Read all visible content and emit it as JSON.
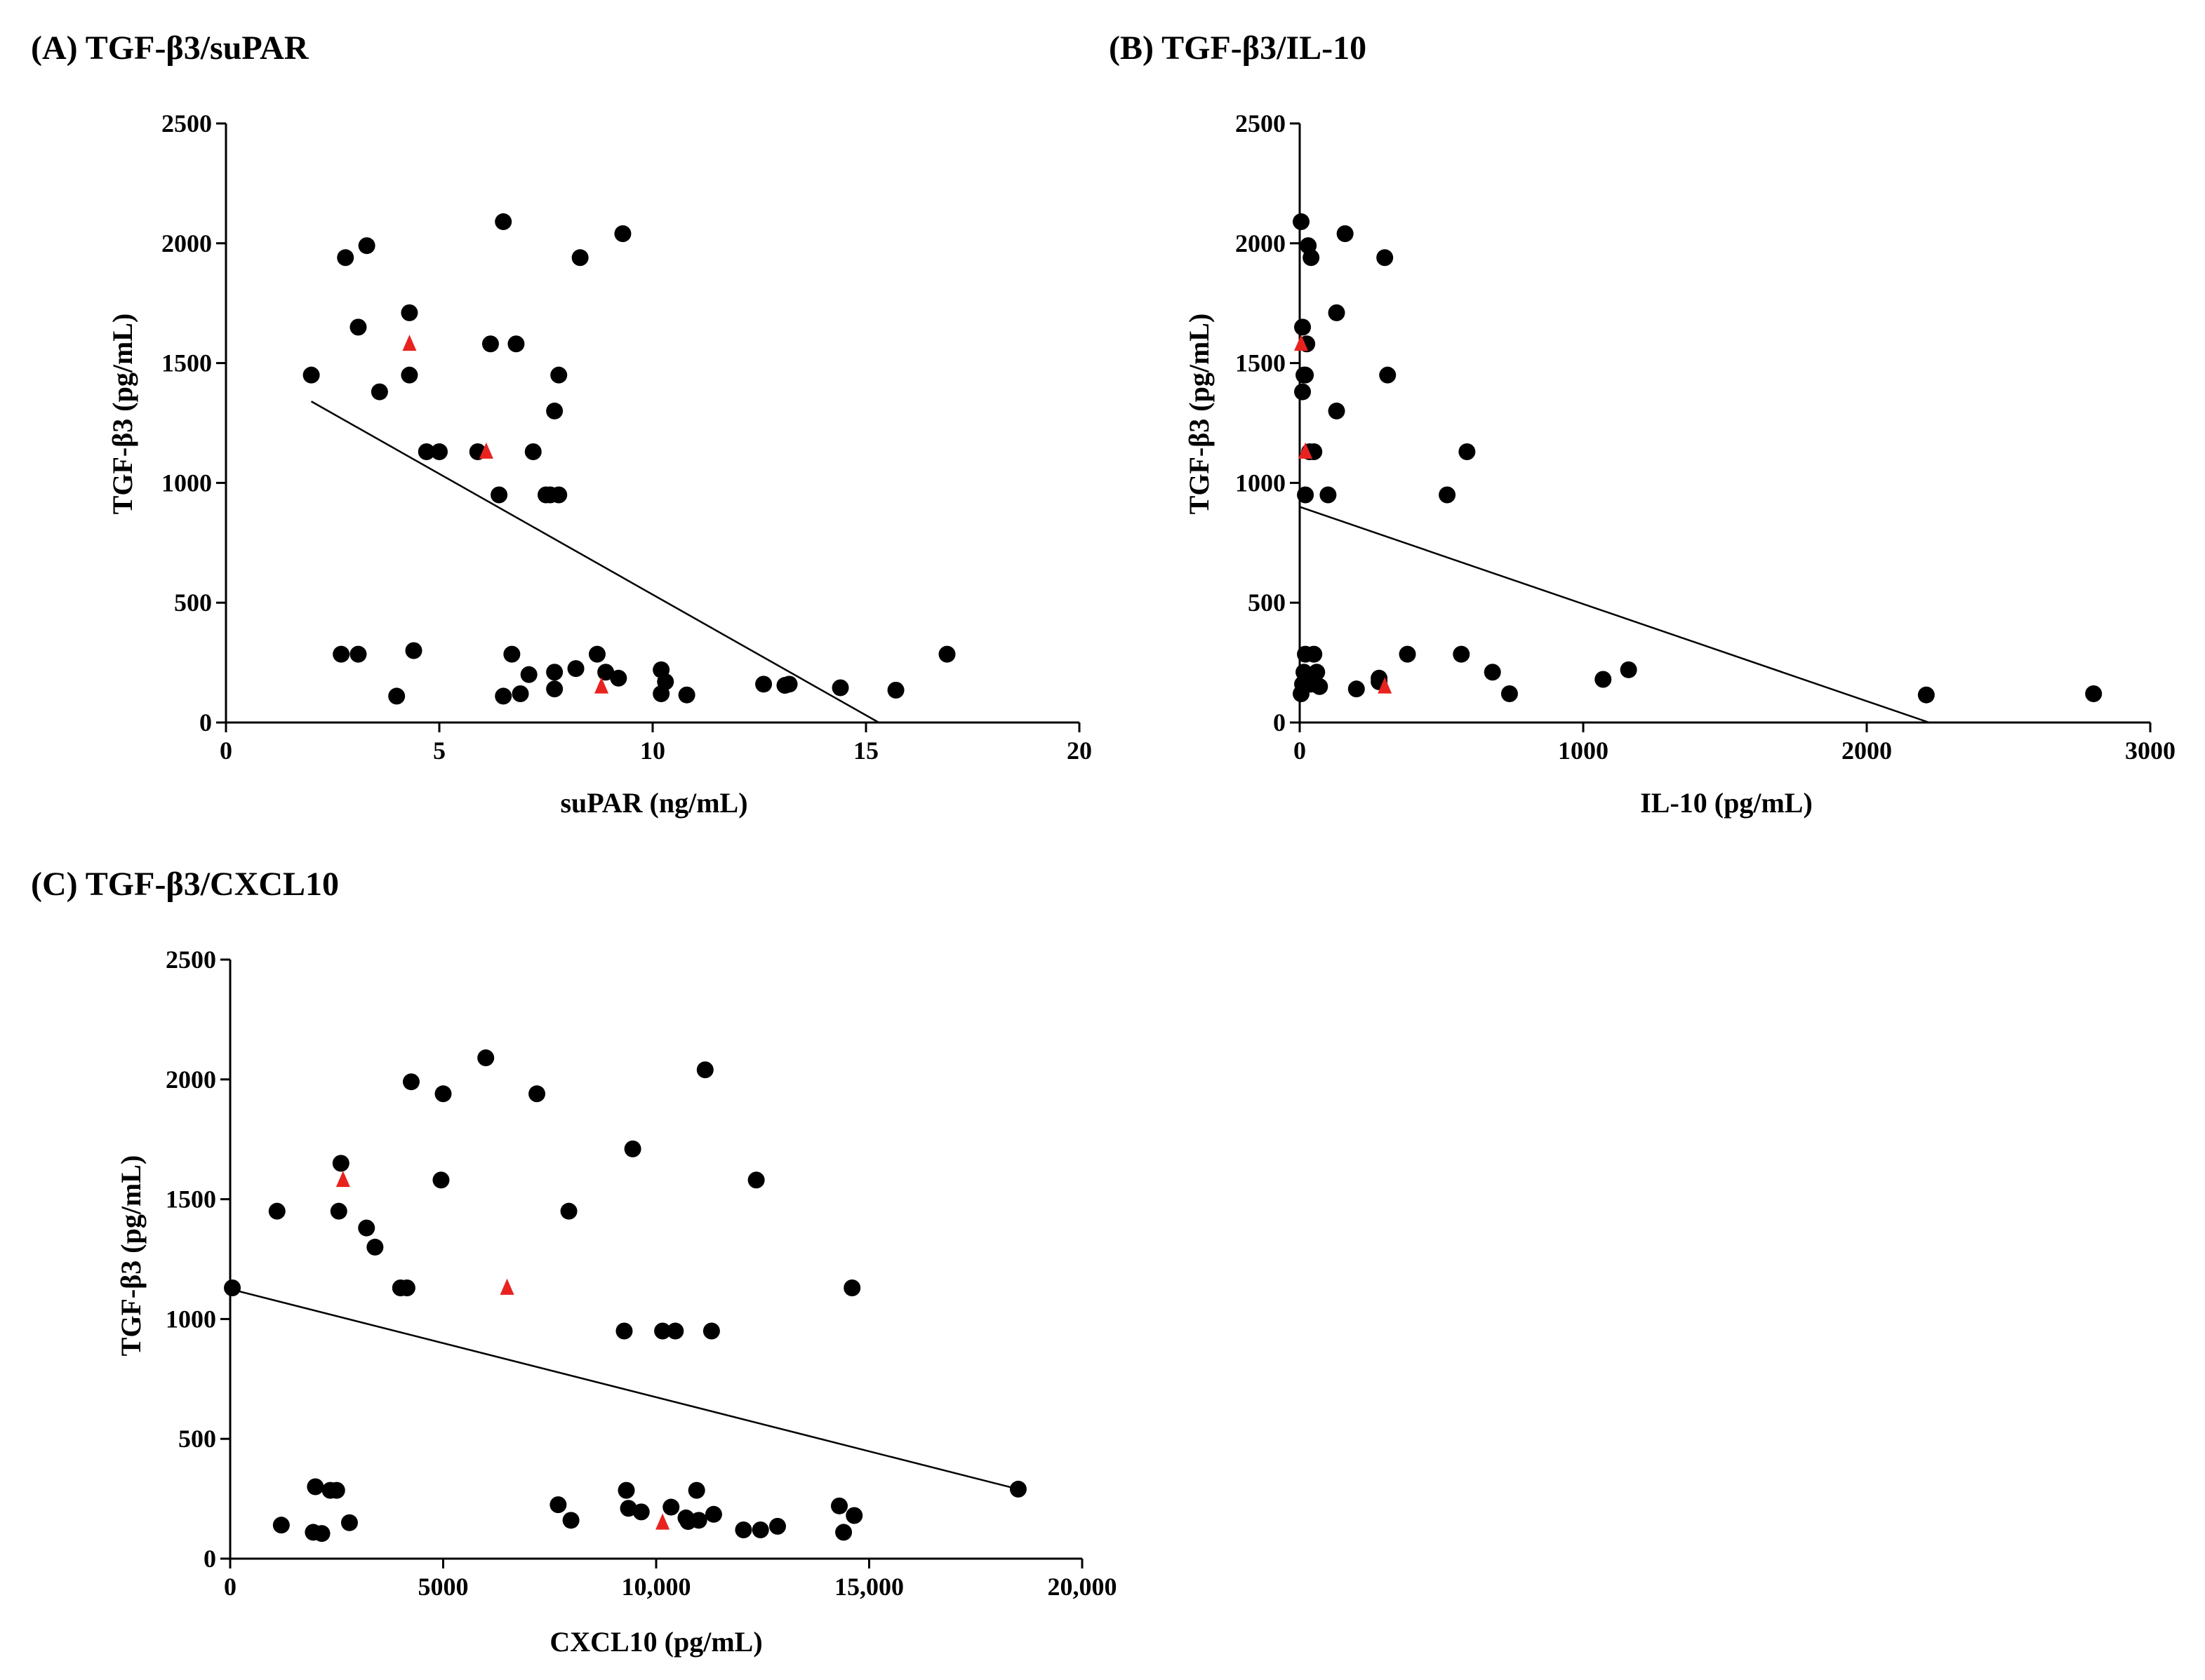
{
  "chart_data": [
    {
      "id": "A",
      "type": "scatter",
      "title": "(A) TGF-β3/suPAR",
      "xlabel": "suPAR (ng/mL)",
      "ylabel": "TGF-β3 (pg/mL)",
      "xlim": [
        0,
        20
      ],
      "ylim": [
        0,
        2500
      ],
      "xticks": [
        0,
        5,
        10,
        15,
        20
      ],
      "xtick_labels": [
        "0",
        "5",
        "10",
        "15",
        "20"
      ],
      "yticks": [
        0,
        500,
        1000,
        1500,
        2000,
        2500
      ],
      "ytick_labels": [
        "0",
        "500",
        "1000",
        "1500",
        "2000",
        "2500"
      ],
      "grid": false,
      "fit_line": [
        [
          2.0,
          1340
        ],
        [
          15.3,
          0
        ]
      ],
      "series": [
        {
          "marker": "circle",
          "color": "#000000",
          "points": [
            [
              2.0,
              1450
            ],
            [
              2.7,
              285
            ],
            [
              2.8,
              1940
            ],
            [
              3.1,
              285
            ],
            [
              3.1,
              1650
            ],
            [
              3.3,
              1990
            ],
            [
              3.6,
              1380
            ],
            [
              4.0,
              110
            ],
            [
              4.3,
              1710
            ],
            [
              4.3,
              1450
            ],
            [
              4.4,
              300
            ],
            [
              4.7,
              1130
            ],
            [
              5.0,
              1130
            ],
            [
              5.9,
              1130
            ],
            [
              6.2,
              1580
            ],
            [
              6.4,
              950
            ],
            [
              6.5,
              2090
            ],
            [
              6.5,
              110
            ],
            [
              6.7,
              285
            ],
            [
              6.8,
              1580
            ],
            [
              6.9,
              120
            ],
            [
              7.1,
              200
            ],
            [
              7.2,
              1130
            ],
            [
              7.5,
              950
            ],
            [
              7.6,
              950
            ],
            [
              7.7,
              140
            ],
            [
              7.7,
              210
            ],
            [
              7.7,
              1300
            ],
            [
              7.8,
              950
            ],
            [
              7.8,
              1450
            ],
            [
              8.2,
              225
            ],
            [
              8.3,
              1940
            ],
            [
              8.7,
              285
            ],
            [
              8.9,
              210
            ],
            [
              9.2,
              185
            ],
            [
              9.3,
              2040
            ],
            [
              10.2,
              120
            ],
            [
              10.2,
              220
            ],
            [
              10.3,
              170
            ],
            [
              10.8,
              115
            ],
            [
              12.6,
              160
            ],
            [
              13.1,
              155
            ],
            [
              13.2,
              160
            ],
            [
              14.4,
              145
            ],
            [
              15.7,
              135
            ],
            [
              16.9,
              285
            ]
          ]
        },
        {
          "marker": "triangle",
          "color": "#e8231f",
          "points": [
            [
              4.3,
              1580
            ],
            [
              6.1,
              1130
            ],
            [
              8.8,
              150
            ]
          ]
        }
      ]
    },
    {
      "id": "B",
      "type": "scatter",
      "title": "(B) TGF-β3/IL-10",
      "xlabel": "IL-10 (pg/mL)",
      "ylabel": "TGF-β3 (pg/mL)",
      "xlim": [
        0,
        3000
      ],
      "ylim": [
        0,
        2500
      ],
      "xticks": [
        0,
        1000,
        2000,
        3000
      ],
      "xtick_labels": [
        "0",
        "1000",
        "2000",
        "3000"
      ],
      "yticks": [
        0,
        500,
        1000,
        1500,
        2000,
        2500
      ],
      "ytick_labels": [
        "0",
        "500",
        "1000",
        "1500",
        "2000",
        "2500"
      ],
      "grid": false,
      "fit_line": [
        [
          0,
          900
        ],
        [
          2220,
          0
        ]
      ],
      "series": [
        {
          "marker": "circle",
          "color": "#000000",
          "points": [
            [
              5,
              2090
            ],
            [
              10,
              1650
            ],
            [
              15,
              1450
            ],
            [
              20,
              1450
            ],
            [
              10,
              1380
            ],
            [
              30,
              1990
            ],
            [
              40,
              1940
            ],
            [
              25,
              1580
            ],
            [
              35,
              1130
            ],
            [
              50,
              1130
            ],
            [
              20,
              950
            ],
            [
              5,
              120
            ],
            [
              10,
              160
            ],
            [
              15,
              210
            ],
            [
              20,
              285
            ],
            [
              30,
              185
            ],
            [
              40,
              160
            ],
            [
              50,
              285
            ],
            [
              60,
              210
            ],
            [
              70,
              150
            ],
            [
              100,
              950
            ],
            [
              130,
              1710
            ],
            [
              130,
              1300
            ],
            [
              160,
              2040
            ],
            [
              200,
              140
            ],
            [
              280,
              170
            ],
            [
              280,
              185
            ],
            [
              300,
              1940
            ],
            [
              310,
              1450
            ],
            [
              380,
              285
            ],
            [
              520,
              950
            ],
            [
              570,
              285
            ],
            [
              590,
              1130
            ],
            [
              680,
              210
            ],
            [
              740,
              120
            ],
            [
              1070,
              180
            ],
            [
              1160,
              220
            ],
            [
              2210,
              115
            ],
            [
              2800,
              120
            ]
          ]
        },
        {
          "marker": "triangle",
          "color": "#e8231f",
          "points": [
            [
              5,
              1580
            ],
            [
              20,
              1130
            ],
            [
              300,
              150
            ]
          ]
        }
      ]
    },
    {
      "id": "C",
      "type": "scatter",
      "title": "(C) TGF-β3/CXCL10",
      "xlabel": "CXCL10 (pg/mL)",
      "ylabel": "TGF-β3 (pg/mL)",
      "xlim": [
        0,
        20000
      ],
      "ylim": [
        0,
        2500
      ],
      "xticks": [
        0,
        5000,
        10000,
        15000,
        20000
      ],
      "xtick_labels": [
        "0",
        "5000",
        "10,000",
        "15,000",
        "20,000"
      ],
      "yticks": [
        0,
        500,
        1000,
        1500,
        2000,
        2500
      ],
      "ytick_labels": [
        "0",
        "500",
        "1000",
        "1500",
        "2000",
        "2500"
      ],
      "grid": false,
      "fit_line": [
        [
          0,
          1125
        ],
        [
          18500,
          290
        ]
      ],
      "series": [
        {
          "marker": "circle",
          "color": "#000000",
          "points": [
            [
              50,
              1130
            ],
            [
              1100,
              1450
            ],
            [
              1200,
              140
            ],
            [
              1950,
              110
            ],
            [
              2000,
              300
            ],
            [
              2150,
              105
            ],
            [
              2350,
              285
            ],
            [
              2500,
              285
            ],
            [
              2550,
              1450
            ],
            [
              2600,
              1650
            ],
            [
              2800,
              150
            ],
            [
              3200,
              1380
            ],
            [
              3400,
              1300
            ],
            [
              4000,
              1130
            ],
            [
              4150,
              1130
            ],
            [
              4250,
              1990
            ],
            [
              4950,
              1580
            ],
            [
              5000,
              1940
            ],
            [
              6000,
              2090
            ],
            [
              7200,
              1940
            ],
            [
              7700,
              225
            ],
            [
              7950,
              1450
            ],
            [
              8000,
              160
            ],
            [
              9250,
              950
            ],
            [
              9300,
              285
            ],
            [
              9350,
              210
            ],
            [
              9450,
              1710
            ],
            [
              9650,
              195
            ],
            [
              10150,
              950
            ],
            [
              10350,
              215
            ],
            [
              10450,
              950
            ],
            [
              10700,
              170
            ],
            [
              10750,
              155
            ],
            [
              10950,
              285
            ],
            [
              11000,
              160
            ],
            [
              11150,
              2040
            ],
            [
              11300,
              950
            ],
            [
              11350,
              185
            ],
            [
              12050,
              120
            ],
            [
              12350,
              1580
            ],
            [
              12450,
              120
            ],
            [
              12850,
              135
            ],
            [
              14300,
              220
            ],
            [
              14400,
              110
            ],
            [
              14600,
              1130
            ],
            [
              14650,
              180
            ],
            [
              18500,
              290
            ]
          ]
        },
        {
          "marker": "triangle",
          "color": "#e8231f",
          "points": [
            [
              2650,
              1580
            ],
            [
              6500,
              1130
            ],
            [
              10150,
              150
            ]
          ]
        }
      ]
    }
  ]
}
